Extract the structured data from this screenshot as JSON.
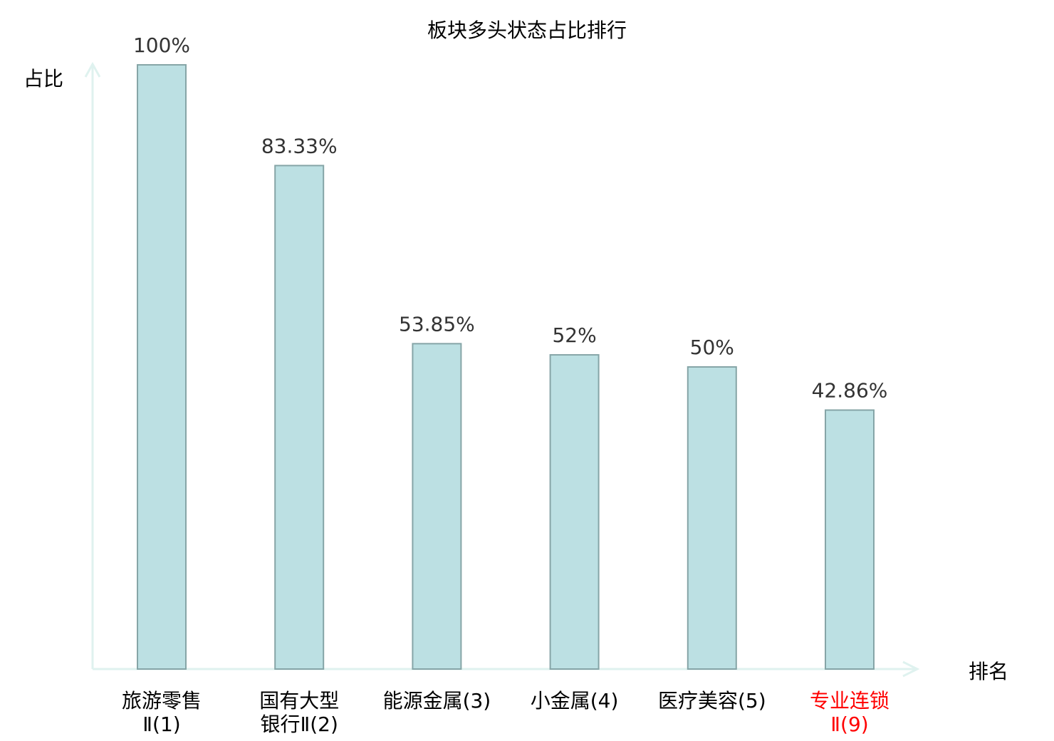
{
  "chart_data": {
    "type": "bar",
    "title": "板块多头状态占比排行",
    "xlabel": "排名",
    "ylabel": "占比",
    "ylim": [
      0,
      100
    ],
    "grid": false,
    "categories": [
      {
        "lines": [
          "旅游零售",
          "Ⅱ(1)"
        ],
        "highlight": false
      },
      {
        "lines": [
          "国有大型",
          "银行Ⅱ(2)"
        ],
        "highlight": false
      },
      {
        "lines": [
          "能源金属(3)"
        ],
        "highlight": false
      },
      {
        "lines": [
          "小金属(4)"
        ],
        "highlight": false
      },
      {
        "lines": [
          "医疗美容(5)"
        ],
        "highlight": false
      },
      {
        "lines": [
          "专业连锁",
          "Ⅱ(9)"
        ],
        "highlight": true
      }
    ],
    "values": [
      100,
      83.33,
      53.85,
      52,
      50,
      42.86
    ],
    "value_labels": [
      "100%",
      "83.33%",
      "53.85%",
      "52%",
      "50%",
      "42.86%"
    ],
    "colors": {
      "bar_fill": "#bce0e3",
      "bar_stroke": "#86a5a7",
      "axis": "#dff2ef",
      "highlight": "#ff0000",
      "text": "#000000",
      "value_text": "#333333"
    }
  }
}
